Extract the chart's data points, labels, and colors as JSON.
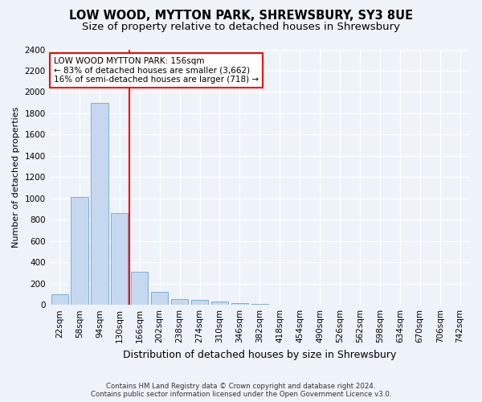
{
  "title": "LOW WOOD, MYTTON PARK, SHREWSBURY, SY3 8UE",
  "subtitle": "Size of property relative to detached houses in Shrewsbury",
  "xlabel": "Distribution of detached houses by size in Shrewsbury",
  "ylabel": "Number of detached properties",
  "bar_labels": [
    "22sqm",
    "58sqm",
    "94sqm",
    "130sqm",
    "166sqm",
    "202sqm",
    "238sqm",
    "274sqm",
    "310sqm",
    "346sqm",
    "382sqm",
    "418sqm",
    "454sqm",
    "490sqm",
    "526sqm",
    "562sqm",
    "598sqm",
    "634sqm",
    "670sqm",
    "706sqm",
    "742sqm"
  ],
  "bar_values": [
    100,
    1010,
    1900,
    860,
    310,
    120,
    55,
    50,
    30,
    20,
    10,
    5,
    0,
    0,
    0,
    0,
    0,
    0,
    0,
    0,
    0
  ],
  "bar_color": "#c5d8f0",
  "bar_edgecolor": "#7aafd4",
  "red_line_index": 4,
  "annotation_text_line1": "LOW WOOD MYTTON PARK: 156sqm",
  "annotation_text_line2": "← 83% of detached houses are smaller (3,662)",
  "annotation_text_line3": "16% of semi-detached houses are larger (718) →",
  "ylim": [
    0,
    2400
  ],
  "yticks": [
    0,
    200,
    400,
    600,
    800,
    1000,
    1200,
    1400,
    1600,
    1800,
    2000,
    2200,
    2400
  ],
  "footer_line1": "Contains HM Land Registry data © Crown copyright and database right 2024.",
  "footer_line2": "Contains public sector information licensed under the Open Government Licence v3.0.",
  "bg_color": "#eef2f9",
  "plot_bg_color": "#eef2f9",
  "grid_color": "#ffffff",
  "title_fontsize": 10.5,
  "subtitle_fontsize": 9.5,
  "tick_fontsize": 7.5,
  "ylabel_fontsize": 8,
  "xlabel_fontsize": 9
}
